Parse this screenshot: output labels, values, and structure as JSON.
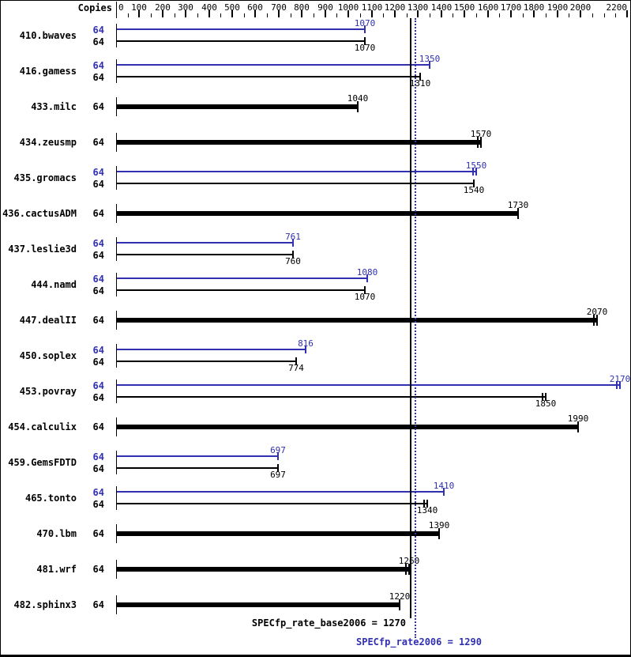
{
  "chart_data": {
    "type": "bar",
    "orientation": "horizontal",
    "title": "",
    "copies_label": "Copies",
    "colors": {
      "peak_blue": "#3030b0",
      "base_black": "#000000",
      "background": "#ffffff"
    },
    "axis": {
      "min": 0,
      "max": 2200,
      "minor_step": 50,
      "major_step": 100,
      "tick_labels": [
        "0",
        "100",
        "200",
        "300",
        "400",
        "500",
        "600",
        "700",
        "800",
        "900",
        "1000",
        "1100",
        "1200",
        "1300",
        "1400",
        "1500",
        "1600",
        "1700",
        "1800",
        "1900",
        "2000",
        "2200"
      ],
      "grid": false,
      "position": "top"
    },
    "benchmarks": [
      {
        "name": "410.bwaves",
        "copies": 64,
        "peak": 1070,
        "base": 1070,
        "base_only": false,
        "peak_tick": "single",
        "base_tick": "single"
      },
      {
        "name": "416.gamess",
        "copies": 64,
        "peak": 1350,
        "base": 1310,
        "base_only": false,
        "peak_tick": "single",
        "base_tick": "single"
      },
      {
        "name": "433.milc",
        "copies": 64,
        "peak": null,
        "base": 1040,
        "base_only": true,
        "peak_tick": null,
        "base_tick": "single"
      },
      {
        "name": "434.zeusmp",
        "copies": 64,
        "peak": null,
        "base": 1570,
        "base_only": true,
        "peak_tick": null,
        "base_tick": "double"
      },
      {
        "name": "435.gromacs",
        "copies": 64,
        "peak": 1550,
        "base": 1540,
        "base_only": false,
        "peak_tick": "double",
        "base_tick": "single"
      },
      {
        "name": "436.cactusADM",
        "copies": 64,
        "peak": null,
        "base": 1730,
        "base_only": true,
        "peak_tick": null,
        "base_tick": "single"
      },
      {
        "name": "437.leslie3d",
        "copies": 64,
        "peak": 761,
        "base": 760,
        "base_only": false,
        "peak_tick": "single",
        "base_tick": "single"
      },
      {
        "name": "444.namd",
        "copies": 64,
        "peak": 1080,
        "base": 1070,
        "base_only": false,
        "peak_tick": "single",
        "base_tick": "single"
      },
      {
        "name": "447.dealII",
        "copies": 64,
        "peak": null,
        "base": 2070,
        "base_only": true,
        "peak_tick": null,
        "base_tick": "double"
      },
      {
        "name": "450.soplex",
        "copies": 64,
        "peak": 816,
        "base": 774,
        "base_only": false,
        "peak_tick": "single",
        "base_tick": "single"
      },
      {
        "name": "453.povray",
        "copies": 64,
        "peak": 2170,
        "base": 1850,
        "base_only": false,
        "peak_tick": "double",
        "base_tick": "double"
      },
      {
        "name": "454.calculix",
        "copies": 64,
        "peak": null,
        "base": 1990,
        "base_only": true,
        "peak_tick": null,
        "base_tick": "single"
      },
      {
        "name": "459.GemsFDTD",
        "copies": 64,
        "peak": 697,
        "base": 697,
        "base_only": false,
        "peak_tick": "single",
        "base_tick": "single"
      },
      {
        "name": "465.tonto",
        "copies": 64,
        "peak": 1410,
        "base": 1340,
        "base_only": false,
        "peak_tick": "single",
        "base_tick": "double"
      },
      {
        "name": "470.lbm",
        "copies": 64,
        "peak": null,
        "base": 1390,
        "base_only": true,
        "peak_tick": null,
        "base_tick": "single"
      },
      {
        "name": "481.wrf",
        "copies": 64,
        "peak": null,
        "base": 1260,
        "base_only": true,
        "peak_tick": null,
        "base_tick": "double"
      },
      {
        "name": "482.sphinx3",
        "copies": 64,
        "peak": null,
        "base": 1220,
        "base_only": true,
        "peak_tick": null,
        "base_tick": "single"
      }
    ],
    "reference_lines": [
      {
        "name": "base-result-line",
        "value": 1270,
        "style": "solid",
        "color": "#000000"
      },
      {
        "name": "peak-result-line",
        "value": 1290,
        "style": "dotted",
        "color": "#3030b0"
      }
    ],
    "summary": {
      "base_label": "SPECfp_rate_base2006",
      "base_value": 1270,
      "base_text": "SPECfp_rate_base2006 = 1270",
      "peak_label": "SPECfp_rate2006",
      "peak_value": 1290,
      "peak_text": "SPECfp_rate2006 = 1290"
    }
  }
}
